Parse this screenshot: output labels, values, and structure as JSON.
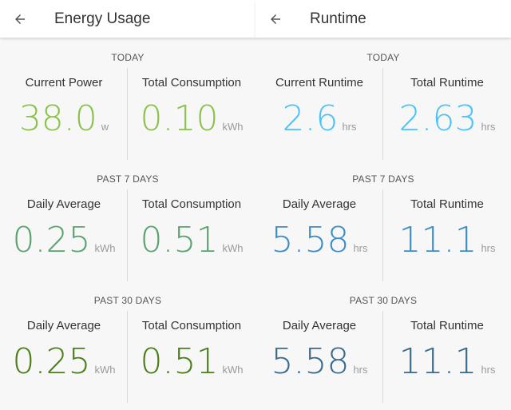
{
  "colors": {
    "today_energy": "#8bc34a",
    "week_energy": "#5aa36f",
    "month_energy": "#4a7f19",
    "today_runtime": "#4fc3f7",
    "week_runtime": "#3d8ec7",
    "month_runtime": "#3a6a8c"
  },
  "icons": {
    "back": "arrow-left-icon"
  },
  "energy": {
    "title": "Energy Usage",
    "sections": [
      {
        "label": "TODAY",
        "metrics": [
          {
            "label": "Current Power",
            "value": "38.0",
            "unit": "w"
          },
          {
            "label": "Total Consumption",
            "value": "0.10",
            "unit": "kWh"
          }
        ]
      },
      {
        "label": "PAST 7 DAYS",
        "metrics": [
          {
            "label": "Daily Average",
            "value": "0.25",
            "unit": "kWh"
          },
          {
            "label": "Total Consumption",
            "value": "0.51",
            "unit": "kWh"
          }
        ]
      },
      {
        "label": "PAST 30 DAYS",
        "metrics": [
          {
            "label": "Daily Average",
            "value": "0.25",
            "unit": "kWh"
          },
          {
            "label": "Total Consumption",
            "value": "0.51",
            "unit": "kWh"
          }
        ]
      }
    ]
  },
  "runtime": {
    "title": "Runtime",
    "sections": [
      {
        "label": "TODAY",
        "metrics": [
          {
            "label": "Current Runtime",
            "value": "2.6",
            "unit": "hrs"
          },
          {
            "label": "Total Runtime",
            "value": "2.63",
            "unit": "hrs"
          }
        ]
      },
      {
        "label": "PAST 7 DAYS",
        "metrics": [
          {
            "label": "Daily Average",
            "value": "5.58",
            "unit": "hrs"
          },
          {
            "label": "Total Runtime",
            "value": "11.1",
            "unit": "hrs"
          }
        ]
      },
      {
        "label": "PAST 30 DAYS",
        "metrics": [
          {
            "label": "Daily Average",
            "value": "5.58",
            "unit": "hrs"
          },
          {
            "label": "Total Runtime",
            "value": "11.1",
            "unit": "hrs"
          }
        ]
      }
    ]
  }
}
